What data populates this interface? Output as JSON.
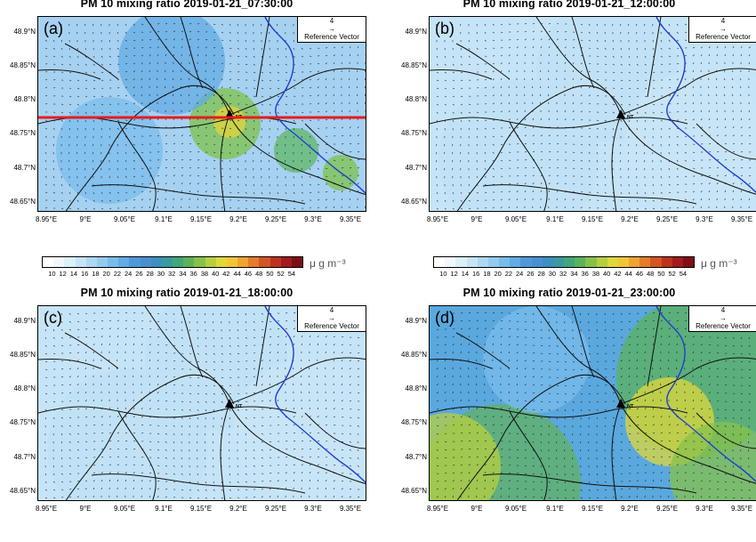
{
  "panels": [
    {
      "title": "PM 10 mixing ratio 2019-01-21_07:30:00",
      "letter": "(a)",
      "state": "moderate"
    },
    {
      "title": "PM 10 mixing ratio 2019-01-21_12:00:00",
      "letter": "(b)",
      "state": "low"
    },
    {
      "title": "PM 10 mixing ratio 2019-01-21_18:00:00",
      "letter": "(c)",
      "state": "low"
    },
    {
      "title": "PM 10 mixing ratio 2019-01-21_23:00:00",
      "letter": "(d)",
      "state": "high"
    }
  ],
  "reference_vector": {
    "magnitude": "4",
    "arrow": "→",
    "label": "Reference Vector"
  },
  "station_label": "NT",
  "y_ticks": [
    "48.9°N",
    "48.85°N",
    "48.8°N",
    "48.75°N",
    "48.7°N",
    "48.65°N"
  ],
  "x_ticks": [
    "8.95°E",
    "9°E",
    "9.05°E",
    "9.1°E",
    "9.15°E",
    "9.2°E",
    "9.25°E",
    "9.3°E",
    "9.35°E"
  ],
  "colorbar": {
    "labels": [
      "10",
      "12",
      "14",
      "16",
      "18",
      "20",
      "22",
      "24",
      "26",
      "28",
      "30",
      "32",
      "34",
      "36",
      "38",
      "40",
      "42",
      "44",
      "46",
      "48",
      "50",
      "52",
      "54"
    ],
    "unit": "μ g m⁻³",
    "colors": [
      "#ffffff",
      "#f0f8fd",
      "#dcf0fa",
      "#c5e5f7",
      "#acd8f3",
      "#93cbef",
      "#79bceb",
      "#62abe3",
      "#4f99d8",
      "#4a8fcf",
      "#3d8ec1",
      "#3a9aa0",
      "#41a67a",
      "#5cb25a",
      "#87c14b",
      "#b6cf3f",
      "#dfd83b",
      "#f3c536",
      "#f0a330",
      "#e57c29",
      "#d45423",
      "#bd321f",
      "#a21a1c",
      "#7f0f14"
    ]
  },
  "transect_color": "#e8191e"
}
